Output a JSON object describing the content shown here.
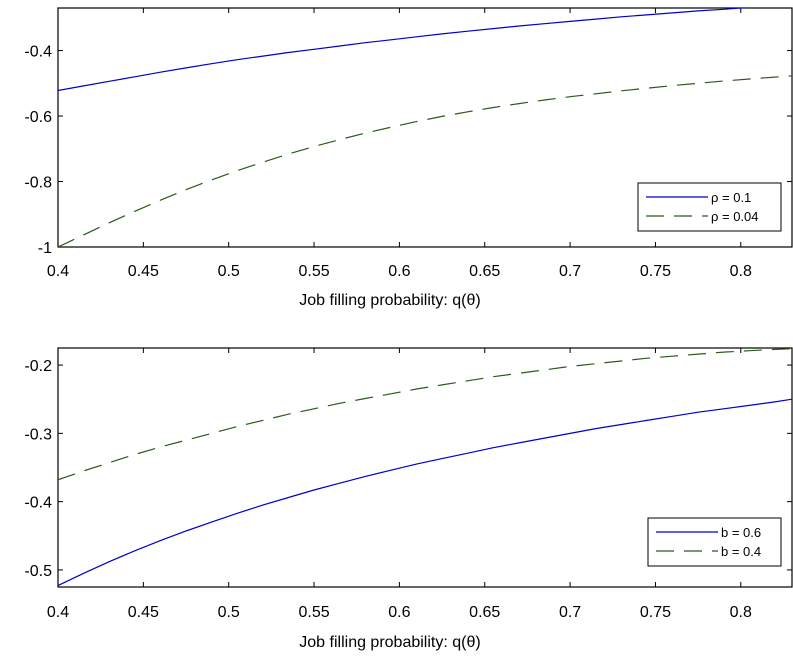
{
  "chart_data": [
    {
      "type": "line",
      "title": "",
      "xlabel": "Job filling probability: q(θ)",
      "ylabel": "",
      "xlim": [
        0.4,
        0.83
      ],
      "ylim": [
        -1.0,
        -0.27
      ],
      "xticks": [
        "0.4",
        "0.45",
        "0.5",
        "0.55",
        "0.6",
        "0.65",
        "0.7",
        "0.75",
        "0.8"
      ],
      "xtick_values": [
        0.4,
        0.45,
        0.5,
        0.55,
        0.6,
        0.65,
        0.7,
        0.75,
        0.8
      ],
      "yticks": [
        "-0.4",
        "-0.6",
        "-0.8",
        "-1"
      ],
      "ytick_values": [
        -0.4,
        -0.6,
        -0.8,
        -1.0
      ],
      "grid": false,
      "legend_position": "bottom-right",
      "x": [
        0.4,
        0.415,
        0.43,
        0.445,
        0.46,
        0.475,
        0.49,
        0.505,
        0.52,
        0.535,
        0.55,
        0.565,
        0.58,
        0.595,
        0.61,
        0.625,
        0.64,
        0.655,
        0.67,
        0.685,
        0.7,
        0.715,
        0.73,
        0.745,
        0.76,
        0.775,
        0.79,
        0.805,
        0.82,
        0.83
      ],
      "series": [
        {
          "name": "ρ = 0.1",
          "color": "#0000cc",
          "dash": "solid",
          "values": [
            -0.522,
            -0.508,
            -0.494,
            -0.48,
            -0.466,
            -0.453,
            -0.44,
            -0.428,
            -0.417,
            -0.406,
            -0.396,
            -0.386,
            -0.376,
            -0.367,
            -0.358,
            -0.349,
            -0.341,
            -0.333,
            -0.325,
            -0.318,
            -0.311,
            -0.304,
            -0.297,
            -0.291,
            -0.285,
            -0.279,
            -0.274,
            -0.268,
            -0.263,
            -0.26
          ]
        },
        {
          "name": "ρ = 0.04",
          "color": "#2d5a1b",
          "dash": "dashed",
          "values": [
            -1.0,
            -0.963,
            -0.926,
            -0.891,
            -0.857,
            -0.825,
            -0.795,
            -0.767,
            -0.741,
            -0.716,
            -0.693,
            -0.672,
            -0.652,
            -0.634,
            -0.617,
            -0.601,
            -0.587,
            -0.574,
            -0.562,
            -0.551,
            -0.541,
            -0.532,
            -0.523,
            -0.515,
            -0.507,
            -0.5,
            -0.493,
            -0.487,
            -0.481,
            -0.477
          ]
        }
      ]
    },
    {
      "type": "line",
      "title": "",
      "xlabel": "Job filling probability: q(θ)",
      "ylabel": "",
      "xlim": [
        0.4,
        0.83
      ],
      "ylim": [
        -0.525,
        -0.175
      ],
      "xticks": [
        "0.4",
        "0.45",
        "0.5",
        "0.55",
        "0.6",
        "0.65",
        "0.7",
        "0.75",
        "0.8"
      ],
      "xtick_values": [
        0.4,
        0.45,
        0.5,
        0.55,
        0.6,
        0.65,
        0.7,
        0.75,
        0.8
      ],
      "yticks": [
        "-0.2",
        "-0.3",
        "-0.4",
        "-0.5"
      ],
      "ytick_values": [
        -0.2,
        -0.3,
        -0.4,
        -0.5
      ],
      "grid": false,
      "legend_position": "bottom-right",
      "x": [
        0.4,
        0.415,
        0.43,
        0.445,
        0.46,
        0.475,
        0.49,
        0.505,
        0.52,
        0.535,
        0.55,
        0.565,
        0.58,
        0.595,
        0.61,
        0.625,
        0.64,
        0.655,
        0.67,
        0.685,
        0.7,
        0.715,
        0.73,
        0.745,
        0.76,
        0.775,
        0.79,
        0.805,
        0.82,
        0.83
      ],
      "series": [
        {
          "name": "b = 0.6",
          "color": "#0000cc",
          "dash": "solid",
          "values": [
            -0.523,
            -0.505,
            -0.488,
            -0.472,
            -0.457,
            -0.443,
            -0.43,
            -0.417,
            -0.405,
            -0.394,
            -0.383,
            -0.373,
            -0.363,
            -0.354,
            -0.345,
            -0.337,
            -0.329,
            -0.321,
            -0.314,
            -0.307,
            -0.3,
            -0.293,
            -0.287,
            -0.281,
            -0.275,
            -0.269,
            -0.264,
            -0.259,
            -0.254,
            -0.25
          ]
        },
        {
          "name": "b = 0.4",
          "color": "#2d5a1b",
          "dash": "dashed",
          "values": [
            -0.368,
            -0.355,
            -0.343,
            -0.331,
            -0.32,
            -0.31,
            -0.3,
            -0.29,
            -0.281,
            -0.272,
            -0.264,
            -0.256,
            -0.249,
            -0.242,
            -0.235,
            -0.229,
            -0.223,
            -0.217,
            -0.212,
            -0.207,
            -0.202,
            -0.198,
            -0.194,
            -0.19,
            -0.187,
            -0.184,
            -0.181,
            -0.179,
            -0.177,
            -0.176
          ]
        }
      ]
    }
  ]
}
